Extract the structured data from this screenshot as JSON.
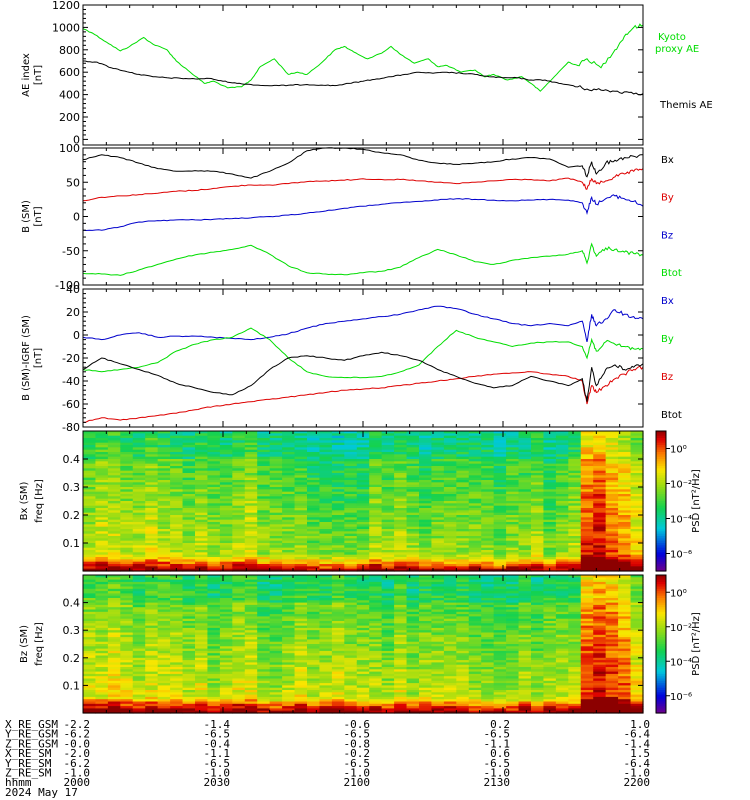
{
  "chart_data": [
    {
      "type": "line",
      "ylabel": "AE index",
      "yunit": "[nT]",
      "ylim": [
        -50,
        1200
      ],
      "yticks": [
        "0",
        "200",
        "400",
        "600",
        "800",
        "1000",
        "1200"
      ],
      "series": [
        {
          "name": "Kyoto proxy AE",
          "color": "#00dd00",
          "x": [
            0,
            2,
            5,
            8,
            10,
            13,
            15,
            18,
            20,
            23,
            26,
            28,
            31,
            34,
            36,
            38,
            41,
            44,
            46,
            48,
            51,
            54,
            56,
            58,
            61,
            64,
            66,
            68,
            71,
            74,
            76,
            78,
            81,
            84,
            86,
            88,
            91,
            94,
            96,
            98,
            101,
            104,
            106,
            108,
            111,
            114,
            116,
            118,
            120
          ],
          "values": [
            990,
            950,
            870,
            790,
            830,
            910,
            850,
            800,
            700,
            600,
            500,
            520,
            460,
            470,
            530,
            650,
            720,
            580,
            600,
            580,
            680,
            800,
            830,
            780,
            720,
            770,
            830,
            760,
            680,
            720,
            650,
            660,
            600,
            620,
            560,
            580,
            530,
            560,
            500,
            430,
            560,
            690,
            660,
            720,
            640,
            800,
            920,
            1000,
            1020
          ]
        },
        {
          "name": "Themis AE",
          "color": "#000000",
          "x": [
            0,
            3,
            6,
            9,
            12,
            15,
            18,
            21,
            24,
            27,
            30,
            33,
            36,
            39,
            42,
            45,
            48,
            51,
            54,
            57,
            60,
            63,
            66,
            69,
            72,
            75,
            78,
            81,
            84,
            87,
            90,
            93,
            96,
            99,
            102,
            105,
            108,
            111,
            114,
            117,
            120
          ],
          "values": [
            700,
            690,
            640,
            610,
            580,
            560,
            550,
            545,
            540,
            545,
            520,
            500,
            490,
            480,
            480,
            485,
            490,
            485,
            480,
            500,
            520,
            540,
            560,
            580,
            600,
            590,
            600,
            590,
            580,
            560,
            550,
            550,
            530,
            530,
            500,
            480,
            450,
            440,
            430,
            420,
            410
          ]
        }
      ],
      "legend": "right"
    },
    {
      "type": "line",
      "ylabel": "B (SM)",
      "yunit": "[nT]",
      "ylim": [
        -100,
        100
      ],
      "yticks": [
        "-100",
        "-50",
        "0",
        "50",
        "100"
      ],
      "series": [
        {
          "name": "Bx",
          "color": "#000000",
          "x": [
            0,
            4,
            8,
            12,
            16,
            20,
            24,
            28,
            32,
            36,
            40,
            44,
            48,
            52,
            56,
            60,
            64,
            68,
            72,
            76,
            80,
            84,
            88,
            92,
            96,
            100,
            104,
            107,
            108,
            109,
            110,
            112,
            114,
            116,
            118,
            120
          ],
          "values": [
            83,
            90,
            86,
            78,
            70,
            66,
            67,
            66,
            62,
            56,
            66,
            78,
            96,
            100,
            100,
            98,
            93,
            90,
            82,
            78,
            76,
            78,
            80,
            84,
            86,
            84,
            72,
            74,
            58,
            80,
            62,
            78,
            82,
            86,
            88,
            90
          ]
        },
        {
          "name": "By",
          "color": "#dd0000",
          "x": [
            0,
            4,
            8,
            12,
            16,
            20,
            24,
            28,
            32,
            36,
            40,
            44,
            48,
            52,
            56,
            60,
            64,
            68,
            72,
            76,
            80,
            84,
            88,
            92,
            96,
            100,
            104,
            107,
            108,
            109,
            110,
            112,
            114,
            116,
            118,
            120
          ],
          "values": [
            23,
            28,
            30,
            32,
            34,
            37,
            38,
            41,
            44,
            46,
            46,
            48,
            51,
            52,
            53,
            55,
            54,
            54,
            52,
            50,
            48,
            50,
            52,
            54,
            54,
            52,
            56,
            50,
            40,
            55,
            48,
            52,
            58,
            62,
            66,
            70
          ]
        },
        {
          "name": "Bz",
          "color": "#0000cc",
          "x": [
            0,
            4,
            8,
            12,
            16,
            20,
            24,
            28,
            32,
            36,
            40,
            44,
            48,
            52,
            56,
            60,
            64,
            68,
            72,
            76,
            80,
            84,
            88,
            92,
            96,
            100,
            104,
            107,
            108,
            109,
            110,
            112,
            114,
            116,
            118,
            120
          ],
          "values": [
            -20,
            -20,
            -15,
            -8,
            -6,
            -5,
            -5,
            -4,
            -3,
            -2,
            0,
            2,
            5,
            8,
            12,
            15,
            18,
            20,
            22,
            24,
            26,
            25,
            24,
            23,
            24,
            25,
            24,
            20,
            5,
            28,
            18,
            26,
            30,
            26,
            22,
            15
          ]
        },
        {
          "name": "Btot",
          "color": "#00dd00",
          "x": [
            0,
            4,
            8,
            12,
            16,
            20,
            24,
            28,
            32,
            36,
            40,
            44,
            48,
            52,
            56,
            60,
            64,
            68,
            72,
            76,
            80,
            84,
            88,
            92,
            96,
            100,
            104,
            107,
            108,
            109,
            110,
            112,
            114,
            116,
            118,
            120
          ],
          "values": [
            -83,
            -84,
            -86,
            -78,
            -70,
            -62,
            -56,
            -52,
            -48,
            -42,
            -55,
            -72,
            -82,
            -84,
            -85,
            -82,
            -80,
            -74,
            -60,
            -48,
            -56,
            -66,
            -70,
            -64,
            -60,
            -58,
            -55,
            -50,
            -68,
            -40,
            -58,
            -46,
            -48,
            -52,
            -54,
            -56
          ]
        }
      ],
      "legend": "right"
    },
    {
      "type": "line",
      "ylabel": "B (SM)-IGRF (SM)",
      "yunit": "[nT]",
      "ylim": [
        -80,
        40
      ],
      "yticks": [
        "-80",
        "-60",
        "-40",
        "-20",
        "0",
        "20",
        "40"
      ],
      "series": [
        {
          "name": "Bx",
          "color": "#0000cc",
          "x": [
            0,
            4,
            8,
            12,
            16,
            20,
            24,
            28,
            32,
            36,
            40,
            44,
            48,
            52,
            56,
            60,
            64,
            68,
            72,
            76,
            80,
            84,
            88,
            92,
            96,
            100,
            104,
            107,
            108,
            109,
            110,
            112,
            114,
            116,
            118,
            120
          ],
          "values": [
            -2,
            -4,
            0,
            2,
            -2,
            -1,
            -1,
            -2,
            -3,
            -4,
            -2,
            1,
            6,
            10,
            12,
            14,
            16,
            18,
            22,
            25,
            23,
            18,
            14,
            10,
            8,
            10,
            8,
            12,
            -6,
            18,
            8,
            14,
            22,
            18,
            16,
            14
          ]
        },
        {
          "name": "By",
          "color": "#00dd00",
          "x": [
            0,
            4,
            8,
            12,
            16,
            20,
            24,
            28,
            32,
            36,
            40,
            44,
            48,
            52,
            56,
            60,
            64,
            68,
            72,
            76,
            80,
            84,
            88,
            92,
            96,
            100,
            104,
            107,
            108,
            109,
            110,
            112,
            114,
            116,
            118,
            120
          ],
          "values": [
            -30,
            -32,
            -30,
            -28,
            -24,
            -14,
            -8,
            -4,
            -2,
            6,
            -4,
            -20,
            -32,
            -36,
            -37,
            -37,
            -36,
            -32,
            -26,
            -10,
            4,
            -2,
            -6,
            -10,
            -7,
            -6,
            -6,
            -10,
            -20,
            -4,
            -14,
            -6,
            -8,
            -10,
            -12,
            -12
          ]
        },
        {
          "name": "Bz",
          "color": "#dd0000",
          "x": [
            0,
            4,
            8,
            12,
            16,
            20,
            24,
            28,
            32,
            36,
            40,
            44,
            48,
            52,
            56,
            60,
            64,
            68,
            72,
            76,
            80,
            84,
            88,
            92,
            96,
            100,
            104,
            107,
            108,
            109,
            110,
            112,
            114,
            116,
            118,
            120
          ],
          "values": [
            -76,
            -72,
            -74,
            -72,
            -70,
            -68,
            -65,
            -62,
            -60,
            -58,
            -56,
            -54,
            -52,
            -50,
            -48,
            -47,
            -46,
            -44,
            -42,
            -40,
            -38,
            -36,
            -34,
            -33,
            -32,
            -34,
            -36,
            -40,
            -60,
            -44,
            -50,
            -44,
            -38,
            -34,
            -30,
            -28
          ]
        },
        {
          "name": "Btot",
          "color": "#000000",
          "x": [
            0,
            4,
            8,
            12,
            16,
            20,
            24,
            28,
            32,
            36,
            40,
            44,
            48,
            52,
            56,
            60,
            64,
            68,
            72,
            76,
            80,
            84,
            88,
            92,
            96,
            100,
            104,
            107,
            108,
            109,
            110,
            112,
            114,
            116,
            118,
            120
          ],
          "values": [
            -30,
            -20,
            -25,
            -30,
            -35,
            -42,
            -46,
            -50,
            -52,
            -44,
            -30,
            -20,
            -18,
            -20,
            -22,
            -18,
            -15,
            -18,
            -22,
            -30,
            -36,
            -42,
            -46,
            -44,
            -36,
            -40,
            -44,
            -38,
            -58,
            -28,
            -44,
            -30,
            -26,
            -30,
            -28,
            -25
          ]
        }
      ],
      "legend": "right"
    },
    {
      "type": "heatmap",
      "ylabel": "Bx (SM)",
      "ylabel2": "freq",
      "yunit": "[Hz]",
      "ylim": [
        0,
        0.5
      ],
      "yticks": [
        "0.1",
        "0.2",
        "0.3",
        "0.4"
      ],
      "colorbar_label": "PSD [nT²/Hz]",
      "colorbar_ticks": [
        "10⁰",
        "10⁻²",
        "10⁻⁴",
        "10⁻⁶"
      ],
      "colorbar_exponents": [
        0,
        -2,
        -4,
        -6
      ],
      "colorbar_range": [
        -7,
        1
      ],
      "activity": [
        2,
        3,
        3,
        2,
        2,
        3,
        2,
        2,
        1,
        2,
        1,
        1,
        2,
        3,
        1,
        1,
        1,
        1,
        0,
        0,
        0,
        0,
        0,
        2,
        1,
        2,
        1,
        0,
        1,
        1,
        1,
        1,
        1,
        0,
        1,
        1,
        2,
        0,
        1,
        2,
        8,
        9,
        7,
        6,
        4
      ]
    },
    {
      "type": "heatmap",
      "ylabel": "Bz (SM)",
      "ylabel2": "freq",
      "yunit": "[Hz]",
      "ylim": [
        0,
        0.5
      ],
      "yticks": [
        "0.1",
        "0.2",
        "0.3",
        "0.4"
      ],
      "colorbar_label": "PSD [nT²/Hz]",
      "colorbar_ticks": [
        "10⁰",
        "10⁻²",
        "10⁻⁴",
        "10⁻⁶"
      ],
      "colorbar_exponents": [
        0,
        -2,
        -4,
        -6
      ],
      "colorbar_range": [
        -7,
        1
      ],
      "activity": [
        3,
        3,
        4,
        3,
        2,
        3,
        3,
        3,
        2,
        3,
        1,
        2,
        3,
        3,
        1,
        1,
        2,
        3,
        2,
        2,
        3,
        2,
        2,
        2,
        1,
        3,
        1,
        2,
        2,
        2,
        2,
        1,
        1,
        1,
        1,
        2,
        1,
        2,
        2,
        2,
        8,
        9,
        8,
        7,
        4
      ]
    }
  ],
  "time_axis": {
    "range_minutes": [
      0,
      120
    ],
    "ticks_minutes": [
      0,
      30,
      60,
      90,
      120
    ]
  },
  "orbit_table": {
    "rows": [
      {
        "label": "X_RE_GSM",
        "values": [
          "-2.2",
          "-1.4",
          "-0.6",
          "0.2",
          "1.0"
        ]
      },
      {
        "label": "Y_RE_GSM",
        "values": [
          "-6.2",
          "-6.5",
          "-6.5",
          "-6.5",
          "-6.4"
        ]
      },
      {
        "label": "Z_RE_GSM",
        "values": [
          "-0.0",
          "-0.4",
          "-0.8",
          "-1.1",
          "-1.4"
        ]
      },
      {
        "label": "X_RE_SM",
        "values": [
          "-2.0",
          "-1.1",
          "-0.2",
          "0.6",
          "1.5"
        ]
      },
      {
        "label": "Y_RE_SM",
        "values": [
          "-6.2",
          "-6.5",
          "-6.5",
          "-6.5",
          "-6.4"
        ]
      },
      {
        "label": "Z_RE_SM",
        "values": [
          "-1.0",
          "-1.0",
          "-1.0",
          "-1.0",
          "-1.0"
        ]
      },
      {
        "label": "hhmm",
        "values": [
          "2000",
          "2030",
          "2100",
          "2130",
          "2200"
        ]
      }
    ],
    "date": "2024 May 17"
  }
}
